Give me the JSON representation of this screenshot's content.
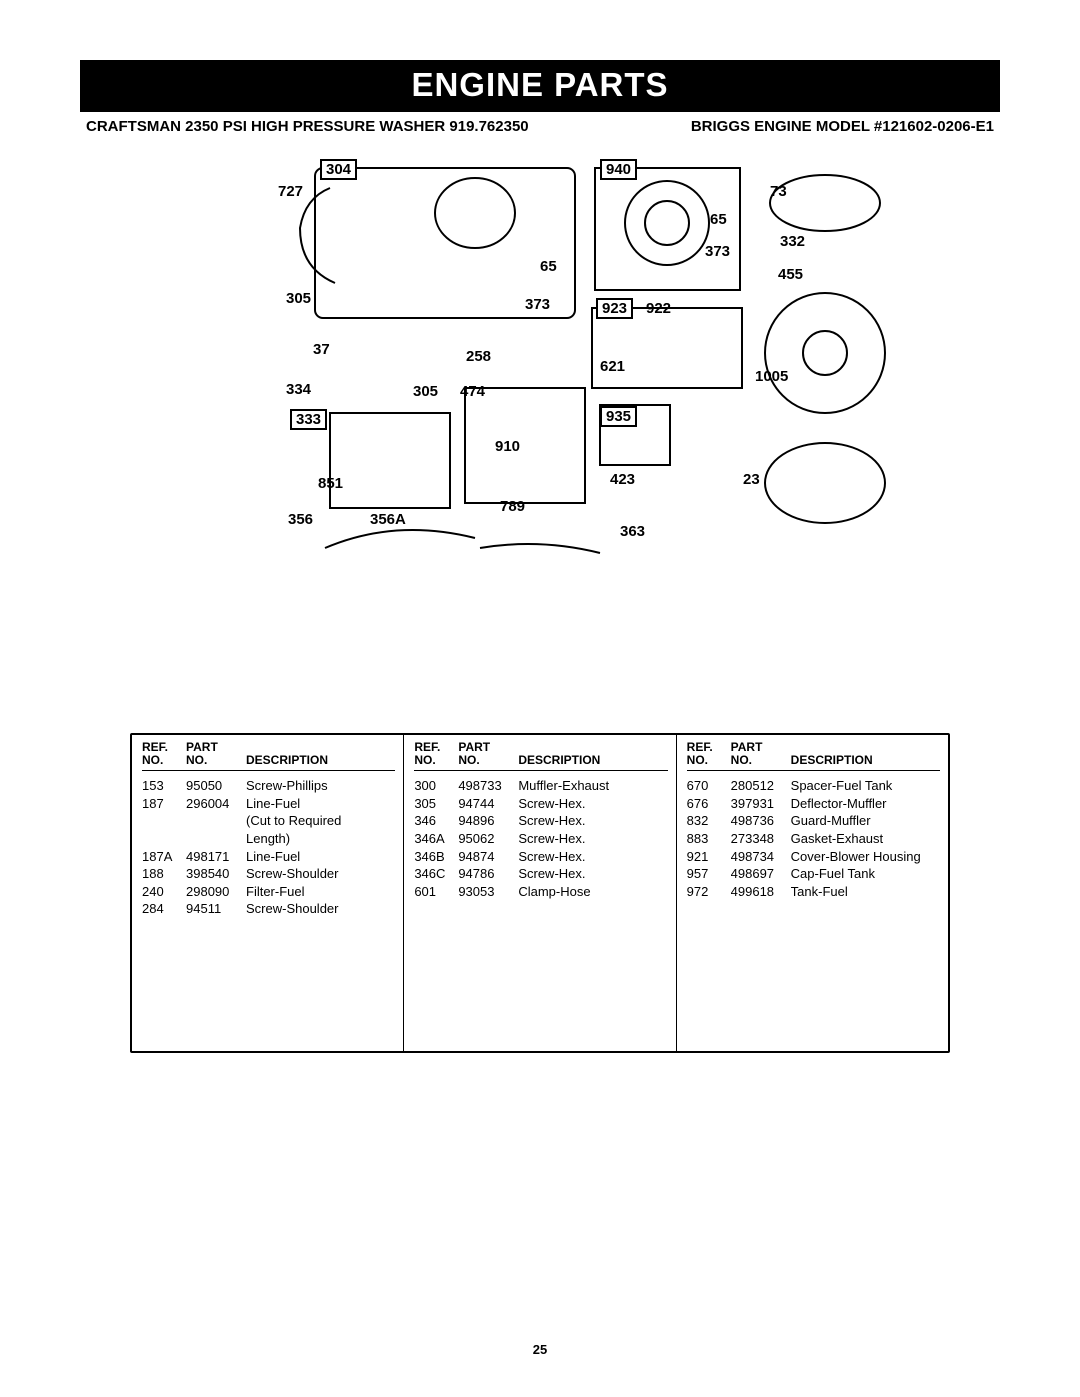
{
  "title_bar": "ENGINE PARTS",
  "sub_header_left": "CRAFTSMAN 2350 PSI HIGH PRESSURE WASHER 919.762350",
  "sub_header_right": "BRIGGS ENGINE MODEL #121602-0206-E1",
  "page_number": "25",
  "callouts": {
    "c304": "304",
    "c727": "727",
    "c940": "940",
    "c73": "73",
    "c65a": "65",
    "c65b": "65",
    "c373a": "373",
    "c373b": "373",
    "c332": "332",
    "c455": "455",
    "c305a": "305",
    "c305b": "305",
    "c37": "37",
    "c258": "258",
    "c923": "923",
    "c922": "922",
    "c621": "621",
    "c1005": "1005",
    "c334": "334",
    "c333": "333",
    "c474": "474",
    "c935": "935",
    "c910": "910",
    "c851": "851",
    "c423": "423",
    "c23": "23",
    "c356": "356",
    "c356A": "356A",
    "c789": "789",
    "c363": "363"
  },
  "table": {
    "headers": {
      "ref": "REF.\nNO.",
      "part": "PART\nNO.",
      "desc": "DESCRIPTION"
    },
    "columns": [
      [
        {
          "ref": "153",
          "part": "95050",
          "desc": "Screw-Phillips"
        },
        {
          "ref": "187",
          "part": "296004",
          "desc": "Line-Fuel"
        },
        {
          "ref": "",
          "part": "",
          "desc": "(Cut to Required"
        },
        {
          "ref": "",
          "part": "",
          "desc": "Length)"
        },
        {
          "ref": "187A",
          "part": "498171",
          "desc": "Line-Fuel"
        },
        {
          "ref": "188",
          "part": "398540",
          "desc": "Screw-Shoulder"
        },
        {
          "ref": "240",
          "part": "298090",
          "desc": "Filter-Fuel"
        },
        {
          "ref": "284",
          "part": "94511",
          "desc": "Screw-Shoulder"
        }
      ],
      [
        {
          "ref": "300",
          "part": "498733",
          "desc": "Muffler-Exhaust"
        },
        {
          "ref": "305",
          "part": "94744",
          "desc": "Screw-Hex."
        },
        {
          "ref": "346",
          "part": "94896",
          "desc": "Screw-Hex."
        },
        {
          "ref": "346A",
          "part": "95062",
          "desc": "Screw-Hex."
        },
        {
          "ref": "346B",
          "part": "94874",
          "desc": "Screw-Hex."
        },
        {
          "ref": "346C",
          "part": "94786",
          "desc": "Screw-Hex."
        },
        {
          "ref": "601",
          "part": "93053",
          "desc": "Clamp-Hose"
        }
      ],
      [
        {
          "ref": "670",
          "part": "280512",
          "desc": "Spacer-Fuel Tank"
        },
        {
          "ref": "676",
          "part": "397931",
          "desc": "Deflector-Muffler"
        },
        {
          "ref": "832",
          "part": "498736",
          "desc": "Guard-Muffler"
        },
        {
          "ref": "883",
          "part": "273348",
          "desc": "Gasket-Exhaust"
        },
        {
          "ref": "921",
          "part": "498734",
          "desc": "Cover-Blower Housing"
        },
        {
          "ref": "957",
          "part": "498697",
          "desc": "Cap-Fuel Tank"
        },
        {
          "ref": "972",
          "part": "499618",
          "desc": "Tank-Fuel"
        }
      ]
    ]
  },
  "style": {
    "titlebar_bg": "#000000",
    "titlebar_fg": "#ffffff",
    "border_color": "#000000",
    "font_family": "Arial, Helvetica, sans-serif"
  }
}
